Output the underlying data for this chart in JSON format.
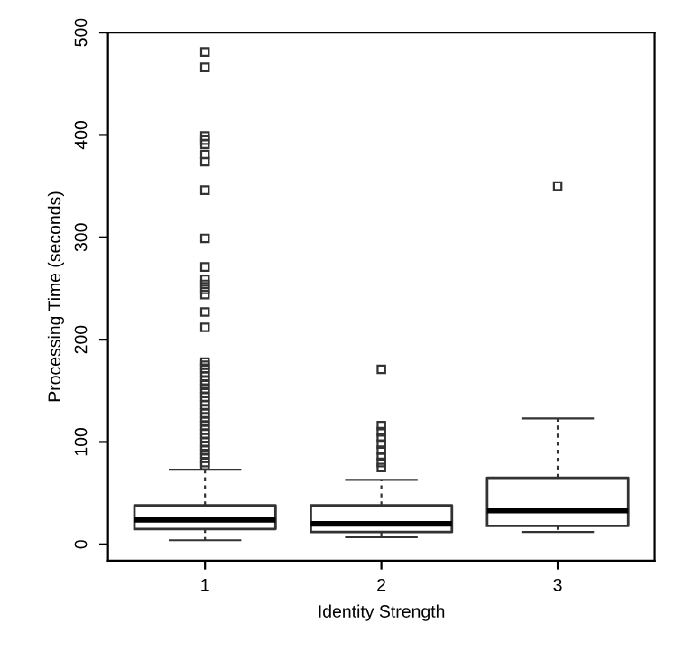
{
  "chart_data": {
    "type": "box",
    "xlabel": "Identity Strength",
    "ylabel": "Processing Time (seconds)",
    "categories": [
      "1",
      "2",
      "3"
    ],
    "boxes": [
      {
        "low": 4,
        "q1": 15,
        "median": 24,
        "q3": 38,
        "high": 73,
        "outliers": [
          481,
          466,
          399,
          395,
          391,
          381,
          374,
          346,
          299,
          271,
          259,
          254,
          249,
          244,
          227,
          212,
          178,
          175,
          172,
          168,
          164,
          160,
          156,
          152,
          148,
          144,
          140,
          136,
          132,
          128,
          124,
          120,
          116,
          112,
          108,
          104,
          100,
          96,
          92,
          88,
          84,
          80,
          77
        ]
      },
      {
        "low": 7,
        "q1": 12,
        "median": 20,
        "q3": 38,
        "high": 63,
        "outliers": [
          171,
          116,
          110,
          104,
          98,
          92,
          86,
          80,
          75
        ]
      },
      {
        "low": 12,
        "q1": 18,
        "median": 33,
        "q3": 65,
        "high": 123,
        "outliers": [
          350
        ]
      }
    ],
    "ylim": [
      -16,
      500
    ],
    "yticks": [
      0,
      100,
      200,
      300,
      400,
      500
    ],
    "grid": false
  }
}
